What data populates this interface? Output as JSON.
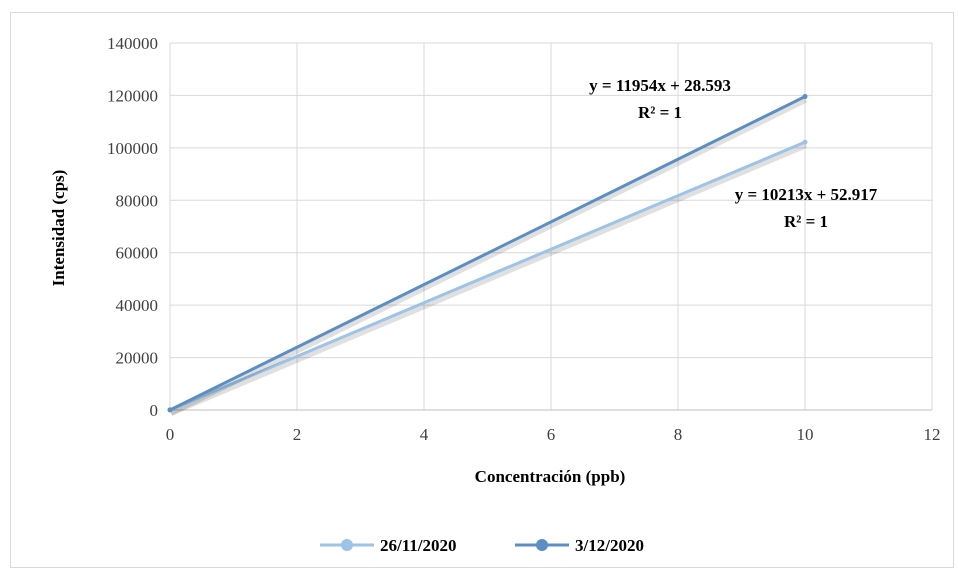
{
  "chart_data": {
    "type": "scatter",
    "title": "",
    "xlabel": "Concentración (ppb)",
    "ylabel": "Intensidad (cps)",
    "xlim": [
      0,
      12
    ],
    "ylim": [
      0,
      140000
    ],
    "x_ticks": [
      "0",
      "2",
      "4",
      "6",
      "8",
      "10",
      "12"
    ],
    "y_ticks": [
      "0",
      "20000",
      "40000",
      "60000",
      "80000",
      "100000",
      "120000",
      "140000"
    ],
    "grid": true,
    "legend_position": "bottom",
    "series": [
      {
        "name": "26/11/2020",
        "color": "#9dc3e6",
        "x": [
          0,
          10
        ],
        "y": [
          52.917,
          102182.917
        ],
        "trendline": "linear",
        "equation": "y = 10213x + 52.917",
        "r2": "R² = 1"
      },
      {
        "name": "3/12/2020",
        "color": "#5b8fc3",
        "x": [
          0,
          10
        ],
        "y": [
          28.593,
          119568.593
        ],
        "trendline": "linear",
        "equation": "y = 11954x + 28.593",
        "r2": "R² = 1"
      }
    ]
  }
}
